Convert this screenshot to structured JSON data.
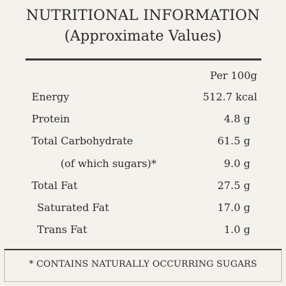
{
  "header": {
    "title": "NUTRITIONAL INFORMATION",
    "subtitle": "(Approximate Values)"
  },
  "table": {
    "column_header": "Per 100g",
    "rows": [
      {
        "label": "Energy",
        "value": "512.7 kcal"
      },
      {
        "label": "Protein",
        "value": "4.8 g"
      },
      {
        "label": "Total Carbohydrate",
        "value": "61.5 g"
      },
      {
        "label": "(of which sugars)*",
        "value": "9.0 g"
      },
      {
        "label": "Total Fat",
        "value": "27.5 g"
      },
      {
        "label": "Saturated Fat",
        "value": "17.0 g"
      },
      {
        "label": "Trans Fat",
        "value": "1.0 g"
      }
    ]
  },
  "footer": {
    "note": "* CONTAINS NATURALLY OCCURRING SUGARS"
  }
}
